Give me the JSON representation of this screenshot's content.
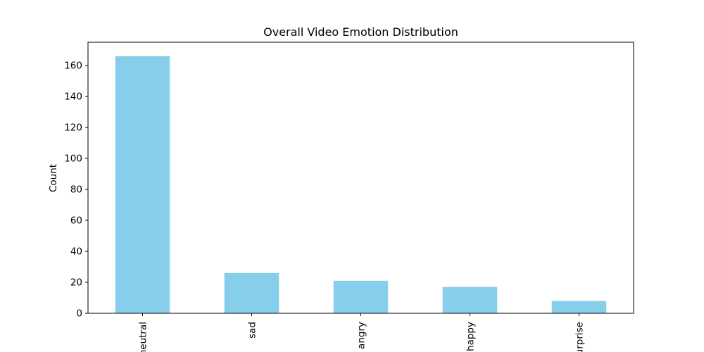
{
  "chart_data": {
    "type": "bar",
    "title": "Overall Video Emotion Distribution",
    "xlabel": "",
    "ylabel": "Count",
    "categories": [
      "neutral",
      "sad",
      "angry",
      "happy",
      "surprise"
    ],
    "values": [
      166,
      26,
      21,
      17,
      8
    ],
    "ylim": [
      0,
      175
    ],
    "yticks": [
      0,
      20,
      40,
      60,
      80,
      100,
      120,
      140,
      160
    ],
    "bar_color": "#87CEEB",
    "grid": false,
    "legend": "none"
  }
}
